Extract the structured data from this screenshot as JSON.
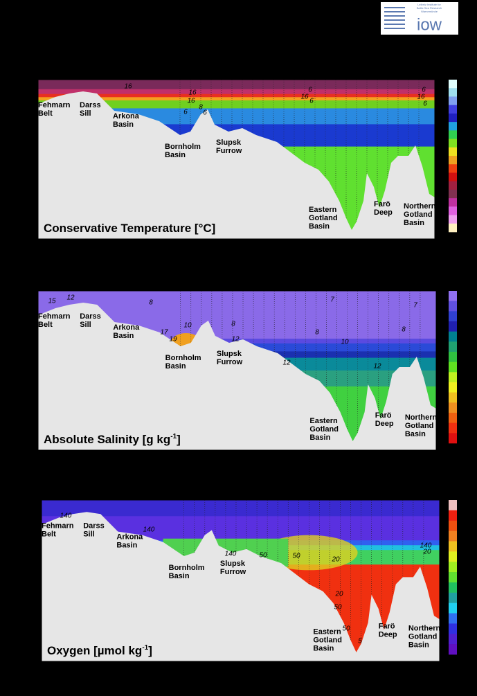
{
  "logo": {
    "mark": "iow",
    "caption": [
      "Leibniz Institute for",
      "Baltic Sea Research",
      "Warnemünde"
    ]
  },
  "places": [
    [
      "Fehmarn",
      "Belt"
    ],
    [
      "Darss",
      "Sill"
    ],
    [
      "Arkona",
      "Basin"
    ],
    [
      "Bornholm",
      "Basin"
    ],
    [
      "Slupsk",
      "Furrow"
    ],
    [
      "Eastern",
      "Gotland",
      "Basin"
    ],
    [
      "Farö",
      "Deep"
    ],
    [
      "Northern",
      "Gotland",
      "Basin"
    ]
  ],
  "panels": [
    {
      "title": "Conservative Temperature [°C]",
      "contour_labels": [
        "16",
        "16",
        "16",
        "6",
        "8",
        "6",
        "6",
        "16",
        "6",
        "6",
        "16",
        "6"
      ]
    },
    {
      "title": "Absolute Salinity [g kg",
      "title_sup": "-1",
      "title_end": "]",
      "contour_labels": [
        "15",
        "12",
        "8",
        "10",
        "17",
        "19",
        "8",
        "12",
        "8",
        "10",
        "12",
        "12",
        "8",
        "7",
        "7"
      ]
    },
    {
      "title": "Oxygen [µmol kg",
      "title_sup": "-1",
      "title_end": "]",
      "contour_labels": [
        "140",
        "140",
        "50",
        "140",
        "20",
        "20",
        "50",
        "50",
        "50",
        "5",
        "140",
        "20"
      ]
    }
  ]
}
